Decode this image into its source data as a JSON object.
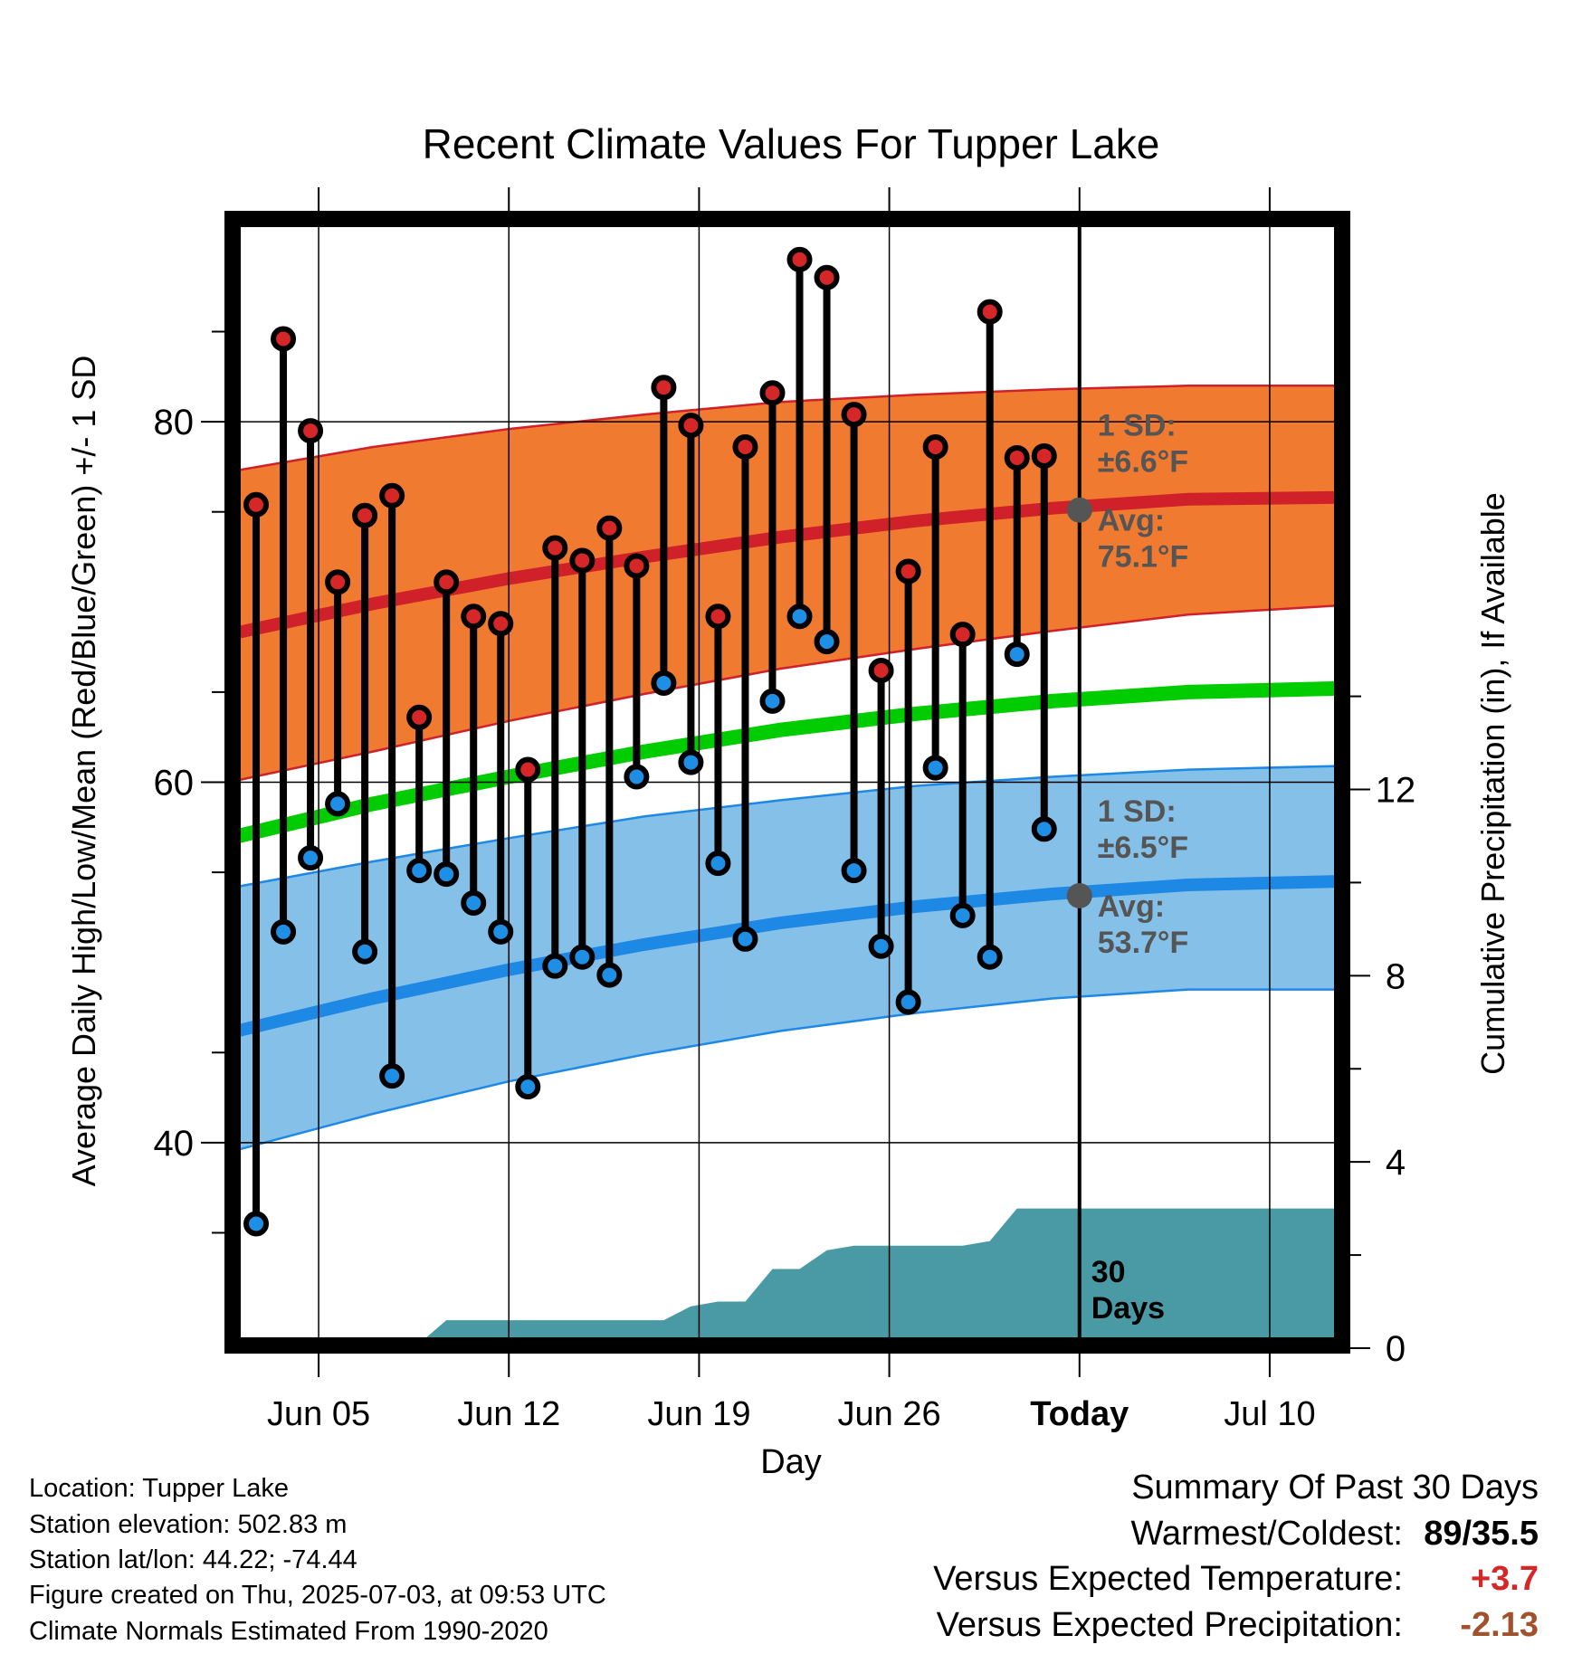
{
  "chart_data": {
    "type": "line",
    "title": "Recent Climate Values For Tupper Lake",
    "xlabel": "Day",
    "ylabel": "Average Daily High/Low/Mean (Red/Blue/Green) +/- 1 SD",
    "y2label": "Cumulative Precipitation (in), If Available",
    "ylim": [
      29,
      91
    ],
    "y_ticks": [
      "40",
      "60",
      "80"
    ],
    "y2lim": [
      0,
      24
    ],
    "y2_ticks": [
      "0",
      "4",
      "8",
      "12"
    ],
    "x_start": "Jun 02",
    "x_end": "Jul 13",
    "x_ticks": [
      {
        "day": 3,
        "label": "Jun 05"
      },
      {
        "day": 10,
        "label": "Jun 12"
      },
      {
        "day": 17,
        "label": "Jun 19"
      },
      {
        "day": 24,
        "label": "Jun 26"
      },
      {
        "day": 31,
        "label": "Today"
      },
      {
        "day": 38,
        "label": "Jul 10"
      }
    ],
    "today_day": 31,
    "grid": true,
    "colors": {
      "high_band": "#f07a30",
      "high_line": "#d0202a",
      "low_band": "#85c0e8",
      "low_line": "#1e88e5",
      "mean_line": "#00cc00",
      "precip": "#4a9aa5",
      "high_marker": "#d62728",
      "low_marker": "#1f8fe6",
      "annotation": "#555555",
      "warm": "#d62728",
      "dry": "#a0522d"
    },
    "normals": {
      "days": [
        0,
        5,
        10,
        15,
        20,
        25,
        30,
        35,
        40.5
      ],
      "high_avg": [
        68.3,
        69.9,
        71.3,
        72.5,
        73.6,
        74.5,
        75.2,
        75.7,
        75.8
      ],
      "high_upper": [
        77.3,
        78.6,
        79.6,
        80.4,
        81.1,
        81.5,
        81.8,
        82.0,
        82.0
      ],
      "high_lower": [
        60.1,
        61.7,
        63.4,
        64.9,
        66.3,
        67.4,
        68.4,
        69.3,
        69.8
      ],
      "mean": [
        57.0,
        58.8,
        60.3,
        61.7,
        62.9,
        63.8,
        64.5,
        65.0,
        65.2
      ],
      "low_avg": [
        46.2,
        48.0,
        49.6,
        51.0,
        52.2,
        53.1,
        53.8,
        54.3,
        54.5
      ],
      "low_upper": [
        54.2,
        55.6,
        56.9,
        58.1,
        59.0,
        59.8,
        60.3,
        60.7,
        60.9
      ],
      "low_lower": [
        39.6,
        41.6,
        43.4,
        44.9,
        46.2,
        47.2,
        48.0,
        48.5,
        48.5
      ]
    },
    "daily": [
      {
        "day": 0.7,
        "high": 75.4,
        "low": 35.5
      },
      {
        "day": 1.7,
        "high": 84.6,
        "low": 51.7
      },
      {
        "day": 2.7,
        "high": 79.5,
        "low": 55.8
      },
      {
        "day": 3.7,
        "high": 71.1,
        "low": 58.8
      },
      {
        "day": 4.7,
        "high": 74.8,
        "low": 50.6
      },
      {
        "day": 5.7,
        "high": 75.9,
        "low": 43.7
      },
      {
        "day": 6.7,
        "high": 63.6,
        "low": 55.1
      },
      {
        "day": 7.7,
        "high": 71.1,
        "low": 54.9
      },
      {
        "day": 8.7,
        "high": 69.2,
        "low": 53.3
      },
      {
        "day": 9.7,
        "high": 68.8,
        "low": 51.7
      },
      {
        "day": 10.7,
        "high": 60.7,
        "low": 43.1
      },
      {
        "day": 11.7,
        "high": 73.0,
        "low": 49.8
      },
      {
        "day": 12.7,
        "high": 72.3,
        "low": 50.3
      },
      {
        "day": 13.7,
        "high": 74.1,
        "low": 49.3
      },
      {
        "day": 14.7,
        "high": 72.0,
        "low": 60.3
      },
      {
        "day": 15.7,
        "high": 81.9,
        "low": 65.5
      },
      {
        "day": 16.7,
        "high": 79.8,
        "low": 61.1
      },
      {
        "day": 17.7,
        "high": 69.2,
        "low": 55.5
      },
      {
        "day": 18.7,
        "high": 78.6,
        "low": 51.3
      },
      {
        "day": 19.7,
        "high": 81.6,
        "low": 64.5
      },
      {
        "day": 20.7,
        "high": 89.0,
        "low": 69.2
      },
      {
        "day": 21.7,
        "high": 88.0,
        "low": 67.8
      },
      {
        "day": 22.7,
        "high": 80.4,
        "low": 55.1
      },
      {
        "day": 23.7,
        "high": 66.2,
        "low": 50.9
      },
      {
        "day": 24.7,
        "high": 71.7,
        "low": 47.8
      },
      {
        "day": 25.7,
        "high": 78.6,
        "low": 60.8
      },
      {
        "day": 26.7,
        "high": 68.2,
        "low": 52.6
      },
      {
        "day": 27.7,
        "high": 86.1,
        "low": 50.3
      },
      {
        "day": 28.7,
        "high": 78.0,
        "low": 67.1
      },
      {
        "day": 29.7,
        "high": 78.1,
        "low": 57.4
      }
    ],
    "precip": {
      "days": [
        0,
        3.5,
        3.6,
        6.7,
        7.7,
        15.7,
        16.7,
        17.7,
        18.7,
        19.7,
        20.7,
        21.7,
        22.7,
        25.7,
        26.7,
        27.7,
        28.7,
        40.5
      ],
      "values": [
        0,
        0,
        0.1,
        0.1,
        0.6,
        0.6,
        0.9,
        1.0,
        1.0,
        1.7,
        1.7,
        2.1,
        2.2,
        2.2,
        2.2,
        2.3,
        3.0,
        3.0
      ]
    },
    "annotations": {
      "high_sd": [
        "1 SD:",
        "±6.6°F"
      ],
      "high_avg": [
        "Avg:",
        "75.1°F"
      ],
      "low_sd": [
        "1 SD:",
        "±6.5°F"
      ],
      "low_avg": [
        "Avg:",
        "53.7°F"
      ],
      "today_high": 75.1,
      "today_low": 53.7,
      "window": [
        "30",
        "Days"
      ]
    }
  },
  "info": {
    "location": "Location: Tupper Lake",
    "elevation": "Station elevation: 502.83 m",
    "latlon": "Station lat/lon: 44.22; -74.44",
    "created": "Figure created on Thu, 2025-07-03, at 09:53 UTC",
    "normals": "Climate Normals Estimated From 1990-2020"
  },
  "summary": {
    "title": "Summary Of Past 30 Days",
    "warmest_label": "Warmest/Coldest:",
    "warmest_value": "89/35.5",
    "temp_label": "Versus Expected Temperature:",
    "temp_value": "+3.7",
    "precip_label": "Versus Expected Precipitation:",
    "precip_value": "-2.13"
  }
}
